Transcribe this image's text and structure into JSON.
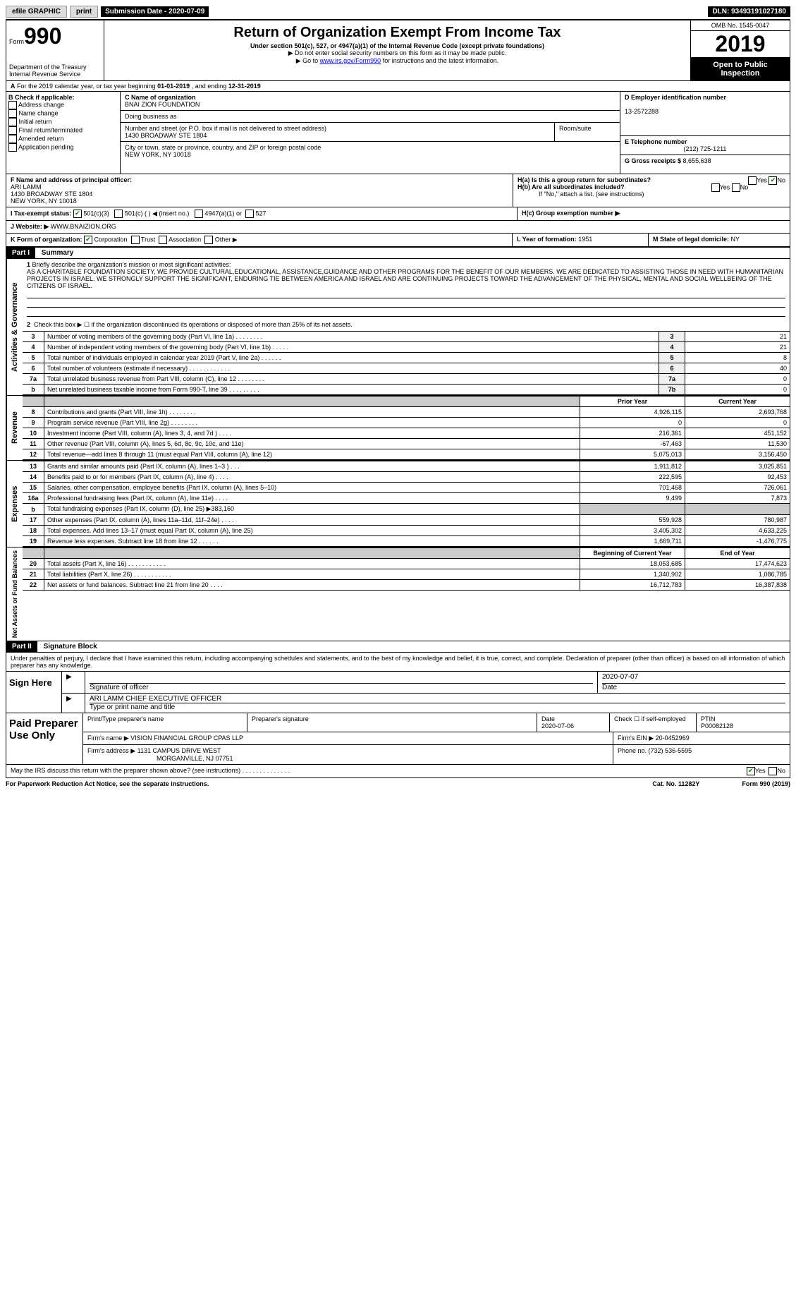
{
  "topbar": {
    "efile": "efile GRAPHIC",
    "print": "print",
    "submission_label": "Submission Date - ",
    "submission_date": "2020-07-09",
    "dln_label": "DLN: ",
    "dln": "93493191027180"
  },
  "header": {
    "form_prefix": "Form",
    "form_number": "990",
    "title": "Return of Organization Exempt From Income Tax",
    "subtitle": "Under section 501(c), 527, or 4947(a)(1) of the Internal Revenue Code (except private foundations)",
    "warn1": "▶ Do not enter social security numbers on this form as it may be made public.",
    "warn2_prefix": "▶ Go to ",
    "warn2_link": "www.irs.gov/Form990",
    "warn2_suffix": " for instructions and the latest information.",
    "dept": "Department of the Treasury\nInternal Revenue Service",
    "omb": "OMB No. 1545-0047",
    "year": "2019",
    "inspection": "Open to Public Inspection"
  },
  "sectionA": {
    "label": "A",
    "text": "For the 2019 calendar year, or tax year beginning ",
    "begin": "01-01-2019",
    "mid": " , and ending ",
    "end": "12-31-2019"
  },
  "sectionB": {
    "label": "B Check if applicable:",
    "opts": [
      "Address change",
      "Name change",
      "Initial return",
      "Final return/terminated",
      "Amended return",
      "Application pending"
    ]
  },
  "sectionC": {
    "name_label": "C Name of organization",
    "name": "BNAI ZION FOUNDATION",
    "dba_label": "Doing business as",
    "dba": "",
    "addr_label": "Number and street (or P.O. box if mail is not delivered to street address)",
    "addr": "1430 BROADWAY STE 1804",
    "room_label": "Room/suite",
    "room": "",
    "city_label": "City or town, state or province, country, and ZIP or foreign postal code",
    "city": "NEW YORK, NY  10018"
  },
  "sectionD": {
    "label": "D Employer identification number",
    "ein": "13-2572288"
  },
  "sectionE": {
    "label": "E Telephone number",
    "phone": "(212) 725-1211"
  },
  "sectionG": {
    "label": "G Gross receipts $ ",
    "amount": "8,655,638"
  },
  "sectionF": {
    "label": "F Name and address of principal officer:",
    "name": "ARI LAMM",
    "addr1": "1430 BROADWAY STE 1804",
    "addr2": "NEW YORK, NY  10018"
  },
  "sectionH": {
    "a_label": "H(a)  Is this a group return for subordinates?",
    "b_label": "H(b)  Are all subordinates included?",
    "b_note": "If \"No,\" attach a list. (see instructions)",
    "c_label": "H(c)  Group exemption number ▶"
  },
  "sectionI": {
    "label": "I   Tax-exempt status:",
    "o1": "501(c)(3)",
    "o2": "501(c) (  ) ◀ (insert no.)",
    "o3": "4947(a)(1) or",
    "o4": "527"
  },
  "sectionJ": {
    "label": "J   Website: ▶",
    "site": "WWW.BNAIZION.ORG"
  },
  "sectionK": {
    "label": "K Form of organization:",
    "opts": [
      "Corporation",
      "Trust",
      "Association",
      "Other ▶"
    ]
  },
  "sectionL": {
    "label": "L Year of formation: ",
    "year": "1951"
  },
  "sectionM": {
    "label": "M State of legal domicile: ",
    "state": "NY"
  },
  "part1": {
    "header": "Part I",
    "title": "Summary",
    "vert_ag": "Activities & Governance",
    "vert_rev": "Revenue",
    "vert_exp": "Expenses",
    "vert_na": "Net Assets or Fund Balances",
    "line1_label": "1",
    "line1_text": "Briefly describe the organization's mission or most significant activities:",
    "mission": "AS A CHARITABLE FOUNDATION SOCIETY, WE PROVIDE CULTURAL,EDUCATIONAL, ASSISTANCE,GUIDANCE AND OTHER PROGRAMS FOR THE BENEFIT OF OUR MEMBERS. WE ARE DEDICATED TO ASSISTING THOSE IN NEED WITH HUMANITARIAN PROJECTS IN ISRAEL. WE STRONGLY SUPPORT THE SIGNIFICANT, ENDURING TIE BETWEEN AMERICA AND ISRAEL AND ARE CONTINUING PROJECTS TOWARD THE ADVANCEMENT OF THE PHYSICAL, MENTAL AND SOCIAL WELLBEING OF THE CITIZENS OF ISRAEL.",
    "line2": "Check this box ▶ ☐ if the organization discontinued its operations or disposed of more than 25% of its net assets.",
    "rows_ag": [
      {
        "n": "3",
        "desc": "Number of voting members of the governing body (Part VI, line 1a)  .    .    .    .    .    .    .    .",
        "lbl": "3",
        "val": "21"
      },
      {
        "n": "4",
        "desc": "Number of independent voting members of the governing body (Part VI, line 1b)  .    .    .    .    .",
        "lbl": "4",
        "val": "21"
      },
      {
        "n": "5",
        "desc": "Total number of individuals employed in calendar year 2019 (Part V, line 2a)  .    .    .    .    .    .",
        "lbl": "5",
        "val": "8"
      },
      {
        "n": "6",
        "desc": "Total number of volunteers (estimate if necessary)  .    .    .    .    .    .    .    .    .    .    .    .",
        "lbl": "6",
        "val": "40"
      },
      {
        "n": "7a",
        "desc": "Total unrelated business revenue from Part VIII, column (C), line 12  .    .    .    .    .    .    .    .",
        "lbl": "7a",
        "val": "0"
      },
      {
        "n": "b",
        "desc": "Net unrelated business taxable income from Form 990-T, line 39  .    .    .    .    .    .    .    .    .",
        "lbl": "7b",
        "val": "0"
      }
    ],
    "col_prior": "Prior Year",
    "col_current": "Current Year",
    "rows_rev": [
      {
        "n": "8",
        "desc": "Contributions and grants (Part VIII, line 1h)  .    .    .    .    .    .    .    .",
        "p": "4,926,115",
        "c": "2,693,768"
      },
      {
        "n": "9",
        "desc": "Program service revenue (Part VIII, line 2g)  .    .    .    .    .    .    .    .",
        "p": "0",
        "c": "0"
      },
      {
        "n": "10",
        "desc": "Investment income (Part VIII, column (A), lines 3, 4, and 7d )  .    .    .    .",
        "p": "216,361",
        "c": "451,152"
      },
      {
        "n": "11",
        "desc": "Other revenue (Part VIII, column (A), lines 5, 6d, 8c, 9c, 10c, and 11e)",
        "p": "-67,463",
        "c": "11,530"
      },
      {
        "n": "12",
        "desc": "Total revenue—add lines 8 through 11 (must equal Part VIII, column (A), line 12)",
        "p": "5,075,013",
        "c": "3,156,450"
      }
    ],
    "rows_exp": [
      {
        "n": "13",
        "desc": "Grants and similar amounts paid (Part IX, column (A), lines 1–3 )  .    .    .",
        "p": "1,911,812",
        "c": "3,025,851"
      },
      {
        "n": "14",
        "desc": "Benefits paid to or for members (Part IX, column (A), line 4)  .    .    .    .",
        "p": "222,595",
        "c": "92,453"
      },
      {
        "n": "15",
        "desc": "Salaries, other compensation, employee benefits (Part IX, column (A), lines 5–10)",
        "p": "701,468",
        "c": "726,061"
      },
      {
        "n": "16a",
        "desc": "Professional fundraising fees (Part IX, column (A), line 11e)  .    .    .    .",
        "p": "9,499",
        "c": "7,873"
      },
      {
        "n": "b",
        "desc": "Total fundraising expenses (Part IX, column (D), line 25) ▶383,160",
        "p": "",
        "c": "",
        "shade": true
      },
      {
        "n": "17",
        "desc": "Other expenses (Part IX, column (A), lines 11a–11d, 11f–24e)  .    .    .    .",
        "p": "559,928",
        "c": "780,987"
      },
      {
        "n": "18",
        "desc": "Total expenses. Add lines 13–17 (must equal Part IX, column (A), line 25)",
        "p": "3,405,302",
        "c": "4,633,225"
      },
      {
        "n": "19",
        "desc": "Revenue less expenses. Subtract line 18 from line 12  .    .    .    .    .    .",
        "p": "1,669,711",
        "c": "-1,476,775"
      }
    ],
    "col_begin": "Beginning of Current Year",
    "col_end": "End of Year",
    "rows_na": [
      {
        "n": "20",
        "desc": "Total assets (Part X, line 16)  .    .    .    .    .    .    .    .    .    .    .",
        "p": "18,053,685",
        "c": "17,474,623"
      },
      {
        "n": "21",
        "desc": "Total liabilities (Part X, line 26)  .    .    .    .    .    .    .    .    .    .    .",
        "p": "1,340,902",
        "c": "1,086,785"
      },
      {
        "n": "22",
        "desc": "Net assets or fund balances. Subtract line 21 from line 20  .    .    .    .",
        "p": "16,712,783",
        "c": "16,387,838"
      }
    ]
  },
  "part2": {
    "header": "Part II",
    "title": "Signature Block",
    "perjury": "Under penalties of perjury, I declare that I have examined this return, including accompanying schedules and statements, and to the best of my knowledge and belief, it is true, correct, and complete. Declaration of preparer (other than officer) is based on all information of which preparer has any knowledge.",
    "sign_here": "Sign Here",
    "sig_officer": "Signature of officer",
    "sig_date": "2020-07-07",
    "date_label": "Date",
    "officer_name": "ARI LAMM CHIEF EXECUTIVE OFFICER",
    "type_name": "Type or print name and title"
  },
  "paid": {
    "label": "Paid Preparer Use Only",
    "print_name_label": "Print/Type preparer's name",
    "print_name": "",
    "sig_label": "Preparer's signature",
    "date_label": "Date",
    "date": "2020-07-06",
    "check_label": "Check ☐ if self-employed",
    "ptin_label": "PTIN",
    "ptin": "P00082128",
    "firm_name_label": "Firm's name    ▶",
    "firm_name": "VISION FINANCIAL GROUP CPAS LLP",
    "firm_ein_label": "Firm's EIN ▶",
    "firm_ein": "20-0452969",
    "firm_addr_label": "Firm's address ▶",
    "firm_addr1": "1131 CAMPUS DRIVE WEST",
    "firm_addr2": "MORGANVILLE, NJ  07751",
    "phone_label": "Phone no. ",
    "phone": "(732) 536-5595"
  },
  "discuss": {
    "text": "May the IRS discuss this return with the preparer shown above? (see instructions)  .    .    .    .    .    .    .    .    .    .    .    .    .    .",
    "yes": "Yes",
    "no": "No"
  },
  "footer": {
    "paperwork": "For Paperwork Reduction Act Notice, see the separate instructions.",
    "cat": "Cat. No. 11282Y",
    "form": "Form 990 (2019)"
  }
}
